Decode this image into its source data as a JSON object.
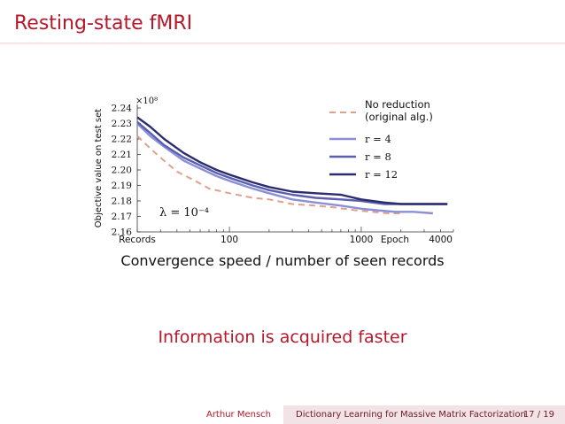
{
  "slide": {
    "title": "Resting-state fMRI",
    "caption": "Convergence speed / number of seen records",
    "callout": "Information is acquired faster"
  },
  "footer": {
    "author": "Arthur Mensch",
    "talk_title": "Dictionary Learning for Massive Matrix Factorization",
    "page": "17 / 19"
  },
  "chart_data": {
    "type": "line",
    "ylabel": "Objective value on test set",
    "y_multiplier": "×10⁸",
    "ylim": [
      2.16,
      2.24
    ],
    "yticks": [
      "2.24",
      "2.23",
      "2.22",
      "2.21",
      "2.20",
      "2.19",
      "2.18",
      "2.17",
      "2.16"
    ],
    "x_scale": "log",
    "xlim": [
      20,
      5000
    ],
    "xtick_labels": [
      {
        "value": 20,
        "label": "Records"
      },
      {
        "value": 100,
        "label": "100"
      },
      {
        "value": 1000,
        "label": "1000"
      },
      {
        "value": 1800,
        "label": "Epoch"
      },
      {
        "value": 4000,
        "label": "4000"
      }
    ],
    "annotation": "λ = 10⁻⁴",
    "legend_position": "top-right",
    "series": [
      {
        "name": "No reduction (original alg.)",
        "legend_lines": [
          "No reduction",
          "(original alg.)"
        ],
        "color": "#e0a08c",
        "dash": true,
        "points": [
          [
            20,
            2.222
          ],
          [
            25,
            2.214
          ],
          [
            30,
            2.208
          ],
          [
            40,
            2.199
          ],
          [
            55,
            2.193
          ],
          [
            70,
            2.188
          ],
          [
            100,
            2.185
          ],
          [
            150,
            2.182
          ],
          [
            200,
            2.181
          ],
          [
            300,
            2.178
          ],
          [
            450,
            2.177
          ],
          [
            600,
            2.176
          ],
          [
            900,
            2.174
          ],
          [
            1200,
            2.173
          ],
          [
            1600,
            2.172
          ],
          [
            2000,
            2.172
          ]
        ]
      },
      {
        "name": "r = 4",
        "legend_lines": [
          "r = 4"
        ],
        "color": "#8a8fd6",
        "dash": false,
        "points": [
          [
            20,
            2.23
          ],
          [
            25,
            2.222
          ],
          [
            32,
            2.215
          ],
          [
            45,
            2.206
          ],
          [
            60,
            2.201
          ],
          [
            80,
            2.196
          ],
          [
            100,
            2.193
          ],
          [
            150,
            2.188
          ],
          [
            200,
            2.185
          ],
          [
            300,
            2.181
          ],
          [
            450,
            2.179
          ],
          [
            700,
            2.177
          ],
          [
            1000,
            2.175
          ],
          [
            1300,
            2.174
          ],
          [
            1800,
            2.173
          ],
          [
            2500,
            2.173
          ],
          [
            3500,
            2.172
          ]
        ]
      },
      {
        "name": "r = 8",
        "legend_lines": [
          "r = 8"
        ],
        "color": "#5b5fae",
        "dash": false,
        "points": [
          [
            20,
            2.231
          ],
          [
            25,
            2.224
          ],
          [
            32,
            2.216
          ],
          [
            45,
            2.208
          ],
          [
            60,
            2.203
          ],
          [
            80,
            2.198
          ],
          [
            100,
            2.195
          ],
          [
            150,
            2.19
          ],
          [
            200,
            2.187
          ],
          [
            300,
            2.184
          ],
          [
            450,
            2.182
          ],
          [
            700,
            2.181
          ],
          [
            1000,
            2.18
          ],
          [
            1500,
            2.178
          ],
          [
            2000,
            2.178
          ],
          [
            3000,
            2.178
          ],
          [
            4500,
            2.178
          ]
        ]
      },
      {
        "name": "r = 12",
        "legend_lines": [
          "r = 12"
        ],
        "color": "#2c2c6e",
        "dash": false,
        "points": [
          [
            20,
            2.234
          ],
          [
            25,
            2.228
          ],
          [
            32,
            2.22
          ],
          [
            45,
            2.211
          ],
          [
            60,
            2.205
          ],
          [
            80,
            2.2
          ],
          [
            100,
            2.197
          ],
          [
            150,
            2.192
          ],
          [
            200,
            2.189
          ],
          [
            300,
            2.186
          ],
          [
            450,
            2.185
          ],
          [
            700,
            2.184
          ],
          [
            1000,
            2.181
          ],
          [
            1500,
            2.179
          ],
          [
            2000,
            2.178
          ],
          [
            3000,
            2.178
          ],
          [
            4500,
            2.178
          ]
        ]
      }
    ]
  }
}
